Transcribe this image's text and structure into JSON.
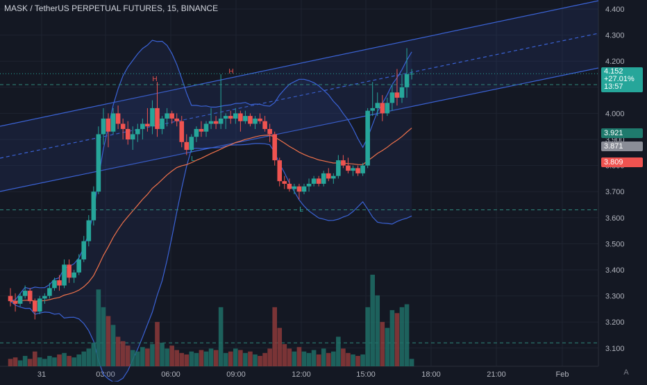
{
  "header": {
    "title": "MASK / TetherUS PERPETUAL FUTURES, 15, BINANCE"
  },
  "colors": {
    "bg": "#141823",
    "up": "#26a69a",
    "down": "#ef5350",
    "band": "#3b63d6",
    "ma": "#f0724b",
    "grid": "#1e2330",
    "axis_text": "#b2b5be"
  },
  "price_labels": {
    "last": "4.152",
    "change": "+27.01%",
    "countdown": "13:57",
    "level_a": "3.921",
    "level_b": "3.871",
    "level_c": "3.809"
  },
  "corner_label": "A",
  "chart_data": {
    "type": "candlestick",
    "title": "MASK / TetherUS PERPETUAL FUTURES, 15, BINANCE",
    "ylim": [
      3.03,
      4.45
    ],
    "y_ticks": [
      "4.400",
      "4.300",
      "4.200",
      "4.100",
      "4.000",
      "3.900",
      "3.800",
      "3.700",
      "3.600",
      "3.500",
      "3.400",
      "3.300",
      "3.200",
      "3.100"
    ],
    "x_ticks": [
      "31",
      "03:00",
      "06:00",
      "09:00",
      "12:00",
      "15:00",
      "18:00",
      "21:00",
      "Feb"
    ],
    "annotations": [
      {
        "text": "H",
        "t": 0.0,
        "price": 4.12
      },
      {
        "text": "H",
        "t": 0.0,
        "price": 4.15
      },
      {
        "text": "L",
        "t": 0.0,
        "price": 3.85
      },
      {
        "text": "L",
        "t": 0.0,
        "price": 3.63
      }
    ],
    "ohlc": [
      [
        3.3,
        3.33,
        3.26,
        3.28
      ],
      [
        3.28,
        3.31,
        3.24,
        3.27
      ],
      [
        3.27,
        3.31,
        3.26,
        3.3
      ],
      [
        3.3,
        3.34,
        3.29,
        3.32
      ],
      [
        3.32,
        3.33,
        3.27,
        3.28
      ],
      [
        3.28,
        3.29,
        3.21,
        3.24
      ],
      [
        3.24,
        3.3,
        3.23,
        3.29
      ],
      [
        3.29,
        3.31,
        3.27,
        3.3
      ],
      [
        3.3,
        3.35,
        3.29,
        3.33
      ],
      [
        3.33,
        3.37,
        3.32,
        3.36
      ],
      [
        3.36,
        3.38,
        3.32,
        3.34
      ],
      [
        3.34,
        3.44,
        3.33,
        3.42
      ],
      [
        3.42,
        3.44,
        3.35,
        3.37
      ],
      [
        3.37,
        3.4,
        3.35,
        3.39
      ],
      [
        3.39,
        3.46,
        3.38,
        3.44
      ],
      [
        3.44,
        3.53,
        3.43,
        3.51
      ],
      [
        3.51,
        3.61,
        3.49,
        3.59
      ],
      [
        3.59,
        3.72,
        3.57,
        3.7
      ],
      [
        3.7,
        3.95,
        3.69,
        3.92
      ],
      [
        3.92,
        4.02,
        3.88,
        3.98
      ],
      [
        3.98,
        4.0,
        3.87,
        3.93
      ],
      [
        3.93,
        4.02,
        3.92,
        4.0
      ],
      [
        4.0,
        4.03,
        3.94,
        3.96
      ],
      [
        3.96,
        3.98,
        3.9,
        3.94
      ],
      [
        3.94,
        3.97,
        3.88,
        3.9
      ],
      [
        3.9,
        3.95,
        3.86,
        3.92
      ],
      [
        3.92,
        3.96,
        3.89,
        3.94
      ],
      [
        3.94,
        3.98,
        3.9,
        3.96
      ],
      [
        3.96,
        4.02,
        3.93,
        3.95
      ],
      [
        3.95,
        4.05,
        3.92,
        4.02
      ],
      [
        4.02,
        4.12,
        3.91,
        3.94
      ],
      [
        3.94,
        3.99,
        3.92,
        3.98
      ],
      [
        3.98,
        4.02,
        3.95,
        4.0
      ],
      [
        4.0,
        4.01,
        3.96,
        3.98
      ],
      [
        3.98,
        4.0,
        3.95,
        3.97
      ],
      [
        3.97,
        3.99,
        3.87,
        3.89
      ],
      [
        3.89,
        3.92,
        3.84,
        3.86
      ],
      [
        3.86,
        3.92,
        3.85,
        3.91
      ],
      [
        3.91,
        3.95,
        3.89,
        3.94
      ],
      [
        3.94,
        3.97,
        3.91,
        3.93
      ],
      [
        3.93,
        3.97,
        3.91,
        3.96
      ],
      [
        3.96,
        4.02,
        3.94,
        3.97
      ],
      [
        3.97,
        3.99,
        3.94,
        3.96
      ],
      [
        3.96,
        4.15,
        3.94,
        3.98
      ],
      [
        3.98,
        4.0,
        3.94,
        3.99
      ],
      [
        3.99,
        4.01,
        3.96,
        3.98
      ],
      [
        3.98,
        4.02,
        3.96,
        4.0
      ],
      [
        4.0,
        4.01,
        3.93,
        3.97
      ],
      [
        3.97,
        4.01,
        3.96,
        3.99
      ],
      [
        3.99,
        4.0,
        3.95,
        3.96
      ],
      [
        3.96,
        3.99,
        3.94,
        3.98
      ],
      [
        3.98,
        4.0,
        3.96,
        3.97
      ],
      [
        3.97,
        3.99,
        3.93,
        3.94
      ],
      [
        3.94,
        3.96,
        3.89,
        3.92
      ],
      [
        3.92,
        3.93,
        3.8,
        3.82
      ],
      [
        3.82,
        3.83,
        3.72,
        3.74
      ],
      [
        3.74,
        3.76,
        3.71,
        3.73
      ],
      [
        3.73,
        3.75,
        3.7,
        3.71
      ],
      [
        3.71,
        3.73,
        3.69,
        3.72
      ],
      [
        3.72,
        3.73,
        3.67,
        3.7
      ],
      [
        3.7,
        3.73,
        3.69,
        3.72
      ],
      [
        3.72,
        3.75,
        3.7,
        3.73
      ],
      [
        3.73,
        3.76,
        3.72,
        3.75
      ],
      [
        3.75,
        3.76,
        3.72,
        3.73
      ],
      [
        3.73,
        3.78,
        3.72,
        3.77
      ],
      [
        3.77,
        3.79,
        3.74,
        3.75
      ],
      [
        3.75,
        3.77,
        3.73,
        3.76
      ],
      [
        3.76,
        3.84,
        3.75,
        3.82
      ],
      [
        3.82,
        3.84,
        3.79,
        3.8
      ],
      [
        3.8,
        3.83,
        3.77,
        3.78
      ],
      [
        3.78,
        3.8,
        3.76,
        3.79
      ],
      [
        3.79,
        3.8,
        3.76,
        3.77
      ],
      [
        3.77,
        3.81,
        3.76,
        3.8
      ],
      [
        3.8,
        4.02,
        3.79,
        4.01
      ],
      [
        4.01,
        4.12,
        3.99,
        4.02
      ],
      [
        4.02,
        4.08,
        3.99,
        4.04
      ],
      [
        4.04,
        4.07,
        3.97,
        4.0
      ],
      [
        4.0,
        4.06,
        3.99,
        4.04
      ],
      [
        4.04,
        4.11,
        4.01,
        4.08
      ],
      [
        4.08,
        4.17,
        4.03,
        4.06
      ],
      [
        4.06,
        4.15,
        4.04,
        4.1
      ],
      [
        4.1,
        4.25,
        4.06,
        4.15
      ],
      [
        4.15,
        4.17,
        4.13,
        4.152
      ]
    ],
    "volume": [
      0.05,
      0.06,
      0.04,
      0.07,
      0.05,
      0.1,
      0.06,
      0.05,
      0.07,
      0.06,
      0.08,
      0.09,
      0.07,
      0.06,
      0.08,
      0.1,
      0.12,
      0.16,
      0.52,
      0.4,
      0.34,
      0.28,
      0.2,
      0.17,
      0.14,
      0.11,
      0.1,
      0.13,
      0.12,
      0.15,
      0.3,
      0.16,
      0.12,
      0.14,
      0.11,
      0.09,
      0.08,
      0.1,
      0.09,
      0.11,
      0.1,
      0.12,
      0.11,
      0.4,
      0.09,
      0.1,
      0.12,
      0.11,
      0.09,
      0.1,
      0.08,
      0.07,
      0.09,
      0.12,
      0.4,
      0.26,
      0.15,
      0.12,
      0.1,
      0.13,
      0.1,
      0.09,
      0.11,
      0.08,
      0.12,
      0.09,
      0.1,
      0.2,
      0.12,
      0.09,
      0.08,
      0.07,
      0.08,
      0.4,
      0.62,
      0.48,
      0.3,
      0.26,
      0.38,
      0.36,
      0.4,
      0.42,
      0.05
    ]
  }
}
